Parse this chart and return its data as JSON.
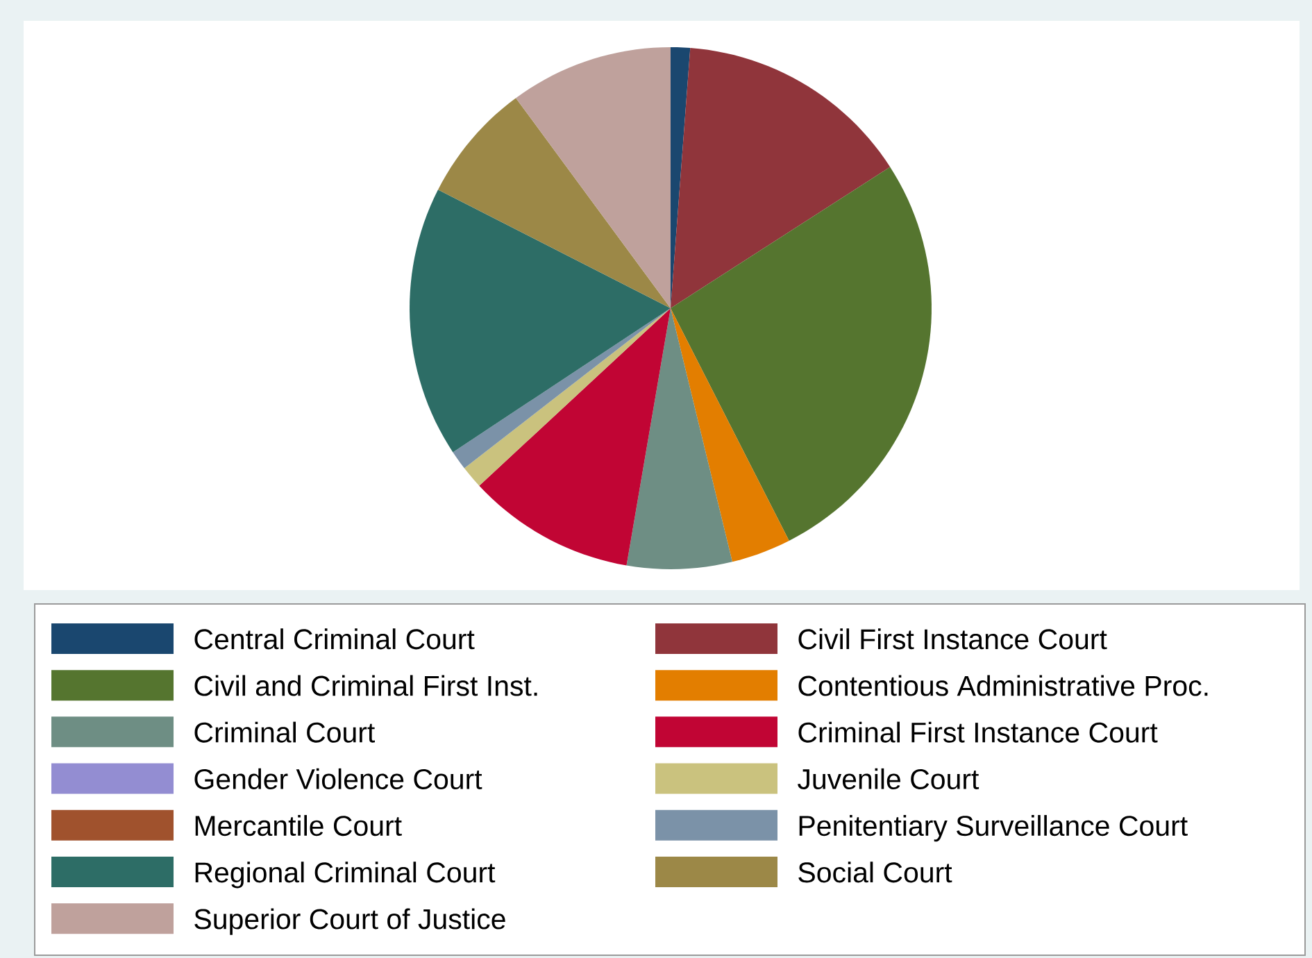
{
  "chart_data": {
    "type": "pie",
    "categories": [
      "Central Criminal Court",
      "Civil First Instance Court",
      "Civil and Criminal First Inst.",
      "Contentious Administrative Proc.",
      "Criminal Court",
      "Criminal First Instance Court",
      "Gender Violence Court",
      "Juvenile Court",
      "Mercantile Court",
      "Penitentiary Surveillance Court",
      "Regional Criminal Court",
      "Social Court",
      "Superior Court of Justice"
    ],
    "values": [
      1.2,
      14.7,
      26.6,
      3.7,
      6.5,
      10.4,
      0,
      1.4,
      0,
      1.2,
      16.8,
      7.4,
      10.1
    ],
    "colors": [
      "#1a476f",
      "#90353b",
      "#55752f",
      "#e37e00",
      "#6e8e84",
      "#c10534",
      "#938dd2",
      "#cac27e",
      "#a0522d",
      "#7b92a8",
      "#2d6d66",
      "#9c8847",
      "#bfa19c"
    ],
    "legend": "bottom"
  }
}
